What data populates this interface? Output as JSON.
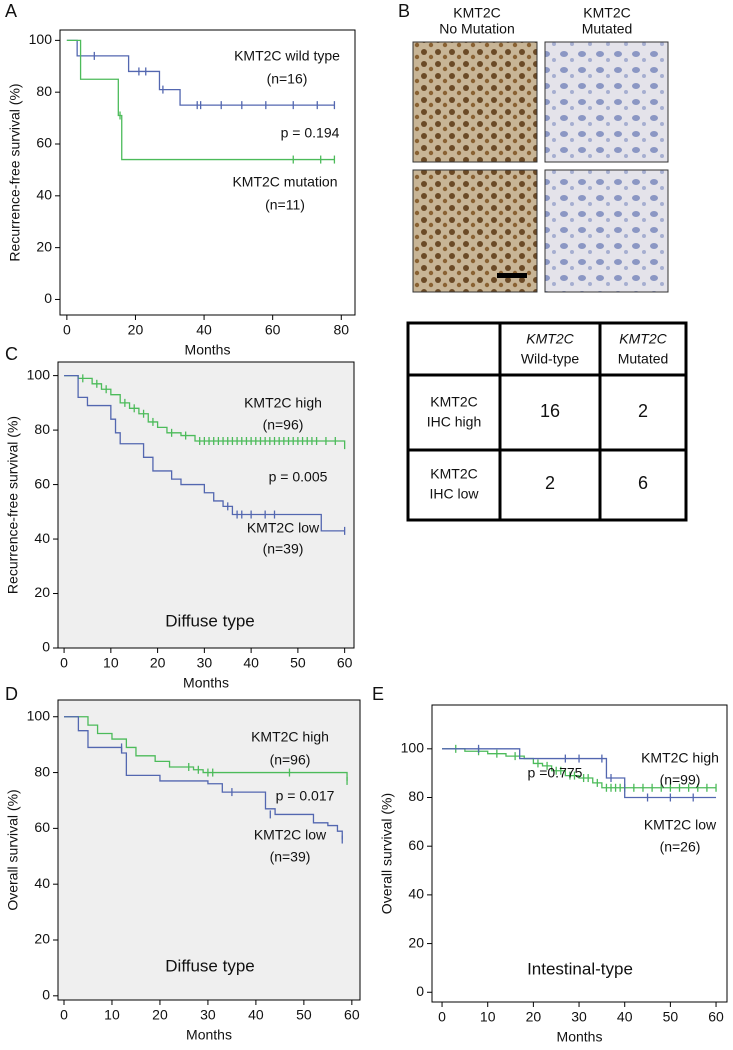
{
  "panel_b": {
    "panel": "B",
    "columns": [
      [
        "KMT2C",
        "No Mutation"
      ],
      [
        "KMT2C",
        "Mutated"
      ]
    ],
    "table": {
      "columns": [
        [
          "KMT2C",
          "Wild-type"
        ],
        [
          "KMT2C",
          "Mutated"
        ]
      ],
      "rows": [
        {
          "label": [
            "KMT2C",
            "IHC high"
          ],
          "cells": [
            16,
            2
          ]
        },
        {
          "label": [
            "KMT2C",
            "IHC low"
          ],
          "cells": [
            2,
            6
          ]
        }
      ]
    }
  },
  "chart_data": [
    {
      "type": "km",
      "panel": "A",
      "xlabel": "Months",
      "ylabel": "Recurrence-free  survival (%)",
      "xlim": [
        -2,
        84
      ],
      "ylim": [
        -6,
        104
      ],
      "xticks": [
        0,
        20,
        40,
        60,
        80
      ],
      "yticks": [
        0,
        20,
        40,
        60,
        80,
        100
      ],
      "plot_background": "#ffffff",
      "series": [
        {
          "name": "KMT2C wild type",
          "n_label": "(n=16)",
          "color": "#5367b0",
          "x": [
            0,
            3,
            3,
            18,
            18,
            27,
            27,
            33,
            33,
            78
          ],
          "values": [
            100,
            100,
            94,
            94,
            88,
            88,
            81,
            81,
            75,
            75
          ],
          "censored": {
            "x": [
              8,
              21,
              23,
              28,
              38,
              39,
              45,
              51,
              58,
              66,
              73,
              78
            ],
            "values": [
              94,
              88,
              88,
              81,
              75,
              75,
              75,
              75,
              75,
              75,
              75,
              75
            ]
          }
        },
        {
          "name": "KMT2C mutation",
          "n_label": "(n=11)",
          "color": "#4cbb5a",
          "x": [
            0,
            4,
            4,
            15,
            15,
            16,
            16,
            78
          ],
          "values": [
            100,
            100,
            85,
            85,
            71,
            71,
            54,
            54
          ],
          "censored": {
            "x": [
              15.5,
              66,
              74,
              78
            ],
            "values": [
              71,
              54,
              54,
              54
            ]
          }
        }
      ],
      "annotations": [
        "p = 0.194"
      ]
    },
    {
      "type": "km",
      "panel": "C",
      "xlabel": "Months",
      "ylabel": "Recurrence-free  survival (%)",
      "xlim": [
        -1.3,
        62
      ],
      "ylim": [
        0,
        105
      ],
      "xticks": [
        0,
        10,
        20,
        30,
        40,
        50,
        60
      ],
      "yticks": [
        0,
        20,
        40,
        60,
        80,
        100
      ],
      "plot_background": "#efefef",
      "series": [
        {
          "name": "KMT2C high",
          "n_label": "(n=96)",
          "color": "#4cbb5a",
          "x": [
            0,
            3,
            3,
            6,
            6,
            8,
            8,
            10,
            10,
            12,
            12,
            14,
            14,
            16,
            16,
            18,
            18,
            20,
            20,
            22,
            22,
            25,
            25,
            28,
            28,
            60,
            60
          ],
          "values": [
            100,
            100,
            99,
            99,
            97,
            97,
            95,
            95,
            93,
            93,
            90,
            90,
            88,
            88,
            86,
            86,
            83,
            83,
            81,
            81,
            79,
            79,
            78,
            78,
            76,
            76,
            73
          ],
          "censored": {
            "x": [
              4,
              7,
              9,
              13,
              15,
              17,
              19,
              23,
              26,
              29,
              30,
              31,
              32,
              33,
              34,
              35,
              36,
              37,
              38,
              39,
              40,
              41,
              42,
              43,
              44,
              45,
              46,
              47,
              48,
              49,
              50,
              51,
              52,
              53,
              54,
              56,
              58
            ],
            "values": [
              99,
              97,
              95,
              90,
              88,
              86,
              83,
              79,
              78,
              76,
              76,
              76,
              76,
              76,
              76,
              76,
              76,
              76,
              76,
              76,
              76,
              76,
              76,
              76,
              76,
              76,
              76,
              76,
              76,
              76,
              76,
              76,
              76,
              76,
              76,
              76,
              76
            ]
          }
        },
        {
          "name": "KMT2C low",
          "n_label": "(n=39)",
          "color": "#5367b0",
          "x": [
            0,
            3,
            3,
            5,
            5,
            10,
            10,
            11,
            11,
            12,
            12,
            17,
            17,
            19,
            19,
            23,
            23,
            25,
            25,
            30,
            30,
            32,
            32,
            34,
            34,
            36,
            36,
            55,
            55,
            60
          ],
          "values": [
            100,
            100,
            92,
            92,
            89,
            89,
            84,
            84,
            79,
            79,
            75,
            75,
            70,
            70,
            65,
            65,
            62,
            62,
            60,
            60,
            57,
            57,
            54,
            54,
            52,
            52,
            49,
            49,
            43,
            43
          ],
          "censored": {
            "x": [
              35,
              37,
              38,
              40,
              43,
              45,
              60
            ],
            "values": [
              52,
              49,
              49,
              49,
              49,
              49,
              43
            ]
          }
        }
      ],
      "annotations": [
        "p = 0.005",
        "Diffuse type"
      ]
    },
    {
      "type": "km",
      "panel": "D",
      "xlabel": "Months",
      "ylabel": "Overall survival (%)",
      "xlim": [
        -1.25,
        61.7
      ],
      "ylim": [
        -1.5,
        106
      ],
      "xticks": [
        0,
        10,
        20,
        30,
        40,
        50,
        60
      ],
      "yticks": [
        0,
        20,
        40,
        60,
        80,
        100
      ],
      "plot_background": "#efefef",
      "series": [
        {
          "name": "KMT2C high",
          "n_label": "(n=96)",
          "color": "#4cbb5a",
          "x": [
            0,
            5,
            5,
            7,
            7,
            10,
            10,
            13,
            13,
            15,
            15,
            19,
            19,
            22,
            22,
            27,
            27,
            29,
            29,
            59,
            59
          ],
          "values": [
            100,
            100,
            97,
            97,
            94,
            94,
            92,
            92,
            89,
            89,
            86,
            86,
            84,
            84,
            82,
            82,
            81,
            81,
            80,
            80,
            77
          ],
          "censored": {
            "x": [
              26,
              28,
              30,
              31,
              47,
              59
            ],
            "values": [
              82,
              81,
              80,
              80,
              80,
              77
            ]
          }
        },
        {
          "name": "KMT2C low",
          "n_label": "(n=39)",
          "color": "#5367b0",
          "x": [
            0,
            3,
            3,
            5,
            5,
            12,
            12,
            13,
            13,
            20,
            20,
            30,
            30,
            33,
            33,
            42,
            42,
            44,
            44,
            52,
            52,
            55,
            55,
            57,
            57,
            58,
            58
          ],
          "values": [
            100,
            100,
            95,
            95,
            89,
            89,
            87,
            87,
            79,
            79,
            77,
            77,
            76,
            76,
            73,
            73,
            67,
            67,
            65,
            65,
            62,
            62,
            61,
            61,
            59,
            59,
            56
          ],
          "censored": {
            "x": [
              12,
              35,
              43,
              58
            ],
            "values": [
              89,
              73,
              65,
              56
            ]
          }
        }
      ],
      "annotations": [
        "p = 0.017",
        "Diffuse type"
      ]
    },
    {
      "type": "km",
      "panel": "E",
      "xlabel": "Months",
      "ylabel": "Overall survival (%)",
      "xlim": [
        -2.2,
        62.4
      ],
      "ylim": [
        -4,
        118
      ],
      "xticks": [
        0,
        10,
        20,
        30,
        40,
        50,
        60
      ],
      "yticks": [
        0,
        20,
        40,
        60,
        80,
        100
      ],
      "plot_background": "#ffffff",
      "series": [
        {
          "name": "KMT2C high",
          "n_label": "(n=99)",
          "color": "#4cbb5a",
          "x": [
            0,
            5,
            5,
            10,
            10,
            14,
            14,
            18,
            18,
            20,
            20,
            22,
            22,
            24,
            24,
            27,
            27,
            30,
            30,
            33,
            33,
            35,
            35,
            60
          ],
          "values": [
            100,
            100,
            99,
            99,
            98,
            98,
            97,
            97,
            96,
            96,
            94,
            94,
            93,
            93,
            91,
            91,
            89,
            89,
            88,
            88,
            86,
            86,
            84,
            84
          ],
          "censored": {
            "x": [
              3,
              8,
              12,
              16,
              21,
              23,
              25,
              26,
              28,
              29,
              31,
              32,
              34,
              36,
              37,
              38,
              39,
              40,
              42,
              44,
              46,
              48,
              50,
              52,
              54,
              56,
              58,
              60
            ],
            "values": [
              100,
              99,
              98,
              97,
              94,
              93,
              91,
              91,
              89,
              89,
              88,
              88,
              86,
              84,
              84,
              84,
              84,
              84,
              84,
              84,
              84,
              84,
              84,
              84,
              84,
              84,
              84,
              84
            ]
          }
        },
        {
          "name": "KMT2C low",
          "n_label": "(n=26)",
          "color": "#5367b0",
          "x": [
            0,
            17,
            17,
            36,
            36,
            40,
            40,
            60
          ],
          "values": [
            100,
            100,
            96,
            96,
            88,
            88,
            80,
            80
          ],
          "censored": {
            "x": [
              8,
              27,
              30,
              35,
              37,
              45,
              50,
              55
            ],
            "values": [
              100,
              96,
              96,
              96,
              88,
              80,
              80,
              80
            ]
          }
        }
      ],
      "annotations": [
        "p =0.775",
        "Intestinal-type"
      ]
    }
  ]
}
